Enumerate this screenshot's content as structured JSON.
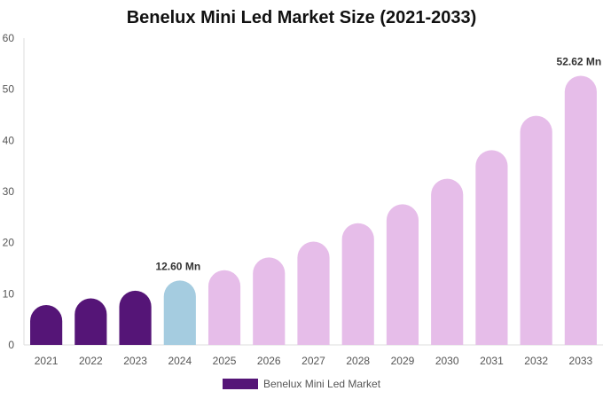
{
  "chart_data": {
    "type": "bar",
    "title": "Benelux Mini Led Market Size (2021-2033)",
    "xlabel": "",
    "ylabel": "",
    "categories": [
      "2021",
      "2022",
      "2023",
      "2024",
      "2025",
      "2026",
      "2027",
      "2028",
      "2029",
      "2030",
      "2031",
      "2032",
      "2033"
    ],
    "series": [
      {
        "name": "Benelux Mini Led Market",
        "values": [
          7.8,
          9.1,
          10.6,
          12.6,
          14.6,
          17.1,
          20.2,
          23.8,
          27.5,
          32.5,
          38.1,
          44.8,
          52.62
        ]
      }
    ],
    "data_labels": [
      {
        "index": 3,
        "text": "12.60 Mn"
      },
      {
        "index": 12,
        "text": "52.62 Mn"
      }
    ],
    "ylim": [
      0,
      60
    ],
    "yticks": [
      0,
      10,
      20,
      30,
      40,
      50,
      60
    ],
    "grid": false,
    "legend": "bottom-center",
    "colors": {
      "historical": "#551577",
      "base_year": "#a5cce0",
      "forecast": "#e6bde9"
    },
    "bar_color_groups": [
      "historical",
      "historical",
      "historical",
      "base_year",
      "forecast",
      "forecast",
      "forecast",
      "forecast",
      "forecast",
      "forecast",
      "forecast",
      "forecast",
      "forecast"
    ],
    "legend_color": "#551577"
  }
}
